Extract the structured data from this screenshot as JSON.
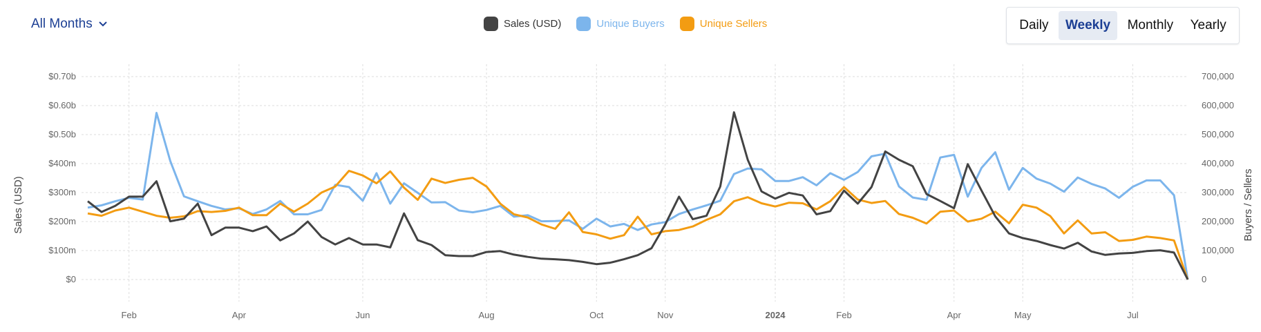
{
  "header": {
    "period_select": "All Months",
    "granularity": [
      "Daily",
      "Weekly",
      "Monthly",
      "Yearly"
    ],
    "active_granularity": "Weekly"
  },
  "legend": [
    {
      "label": "Sales (USD)",
      "color": "#434343"
    },
    {
      "label": "Unique Buyers",
      "color": "#7cb5ec"
    },
    {
      "label": "Unique Sellers",
      "color": "#f39c12"
    }
  ],
  "chart_data": {
    "type": "line",
    "xlabel": "",
    "ylabel_left": "Sales (USD)",
    "ylabel_right": "Buyers / Sellers",
    "ylim_left": [
      0,
      700000000
    ],
    "ylim_right": [
      0,
      700000
    ],
    "y_ticks_left": [
      "$0",
      "$100m",
      "$200m",
      "$300m",
      "$400m",
      "$0.50b",
      "$0.60b",
      "$0.70b"
    ],
    "y_ticks_right": [
      "0",
      "100,000",
      "200,000",
      "300,000",
      "400,000",
      "500,000",
      "600,000",
      "700,000"
    ],
    "x_ticks": [
      {
        "label": "Feb",
        "week": 3
      },
      {
        "label": "Apr",
        "week": 11
      },
      {
        "label": "Jun",
        "week": 20
      },
      {
        "label": "Aug",
        "week": 29
      },
      {
        "label": "Oct",
        "week": 37
      },
      {
        "label": "Nov",
        "week": 42
      },
      {
        "label": "2024",
        "week": 50,
        "bold": true
      },
      {
        "label": "Feb",
        "week": 55
      },
      {
        "label": "Apr",
        "week": 63
      },
      {
        "label": "May",
        "week": 68
      },
      {
        "label": "Jul",
        "week": 76
      }
    ],
    "grid": true,
    "series": [
      {
        "name": "Sales (USD)",
        "axis": "left",
        "unit": "millions USD",
        "color": "#434343",
        "values": [
          270,
          233,
          254,
          286,
          286,
          339,
          201,
          210,
          262,
          153,
          179,
          179,
          167,
          183,
          135,
          159,
          200,
          147,
          121,
          143,
          121,
          121,
          111,
          228,
          136,
          119,
          84,
          81,
          81,
          95,
          98,
          86,
          78,
          72,
          70,
          67,
          61,
          53,
          58,
          70,
          84,
          108,
          190,
          286,
          208,
          220,
          321,
          577,
          413,
          304,
          279,
          299,
          290,
          225,
          236,
          307,
          262,
          319,
          442,
          413,
          391,
          295,
          271,
          246,
          398,
          307,
          218,
          159,
          143,
          133,
          119,
          107,
          127,
          97,
          85,
          90,
          92,
          98,
          101,
          93,
          0
        ]
      },
      {
        "name": "Unique Buyers",
        "axis": "right",
        "unit": "thousands",
        "color": "#7cb5ec",
        "values": [
          248,
          256,
          270,
          282,
          276,
          575,
          409,
          287,
          270,
          254,
          242,
          246,
          226,
          242,
          271,
          225,
          225,
          240,
          327,
          319,
          272,
          367,
          262,
          332,
          299,
          266,
          267,
          238,
          232,
          240,
          254,
          217,
          222,
          201,
          202,
          204,
          175,
          210,
          183,
          192,
          171,
          190,
          198,
          226,
          242,
          256,
          272,
          364,
          383,
          380,
          340,
          340,
          353,
          325,
          367,
          344,
          371,
          425,
          434,
          321,
          283,
          275,
          421,
          430,
          286,
          385,
          439,
          310,
          385,
          348,
          331,
          303,
          352,
          330,
          314,
          282,
          320,
          342,
          342,
          291,
          0
        ]
      },
      {
        "name": "Unique Sellers",
        "axis": "right",
        "unit": "thousands",
        "color": "#f39c12",
        "values": [
          228,
          220,
          238,
          248,
          234,
          220,
          213,
          218,
          236,
          233,
          237,
          248,
          222,
          222,
          262,
          234,
          262,
          300,
          321,
          375,
          359,
          332,
          373,
          317,
          275,
          348,
          333,
          344,
          351,
          321,
          262,
          225,
          214,
          190,
          175,
          232,
          164,
          156,
          141,
          153,
          217,
          156,
          167,
          171,
          183,
          206,
          225,
          270,
          284,
          263,
          252,
          265,
          263,
          242,
          270,
          319,
          276,
          264,
          271,
          226,
          213,
          193,
          234,
          238,
          200,
          210,
          234,
          194,
          258,
          248,
          219,
          159,
          204,
          159,
          163,
          133,
          137,
          148,
          143,
          135,
          0
        ]
      }
    ]
  }
}
